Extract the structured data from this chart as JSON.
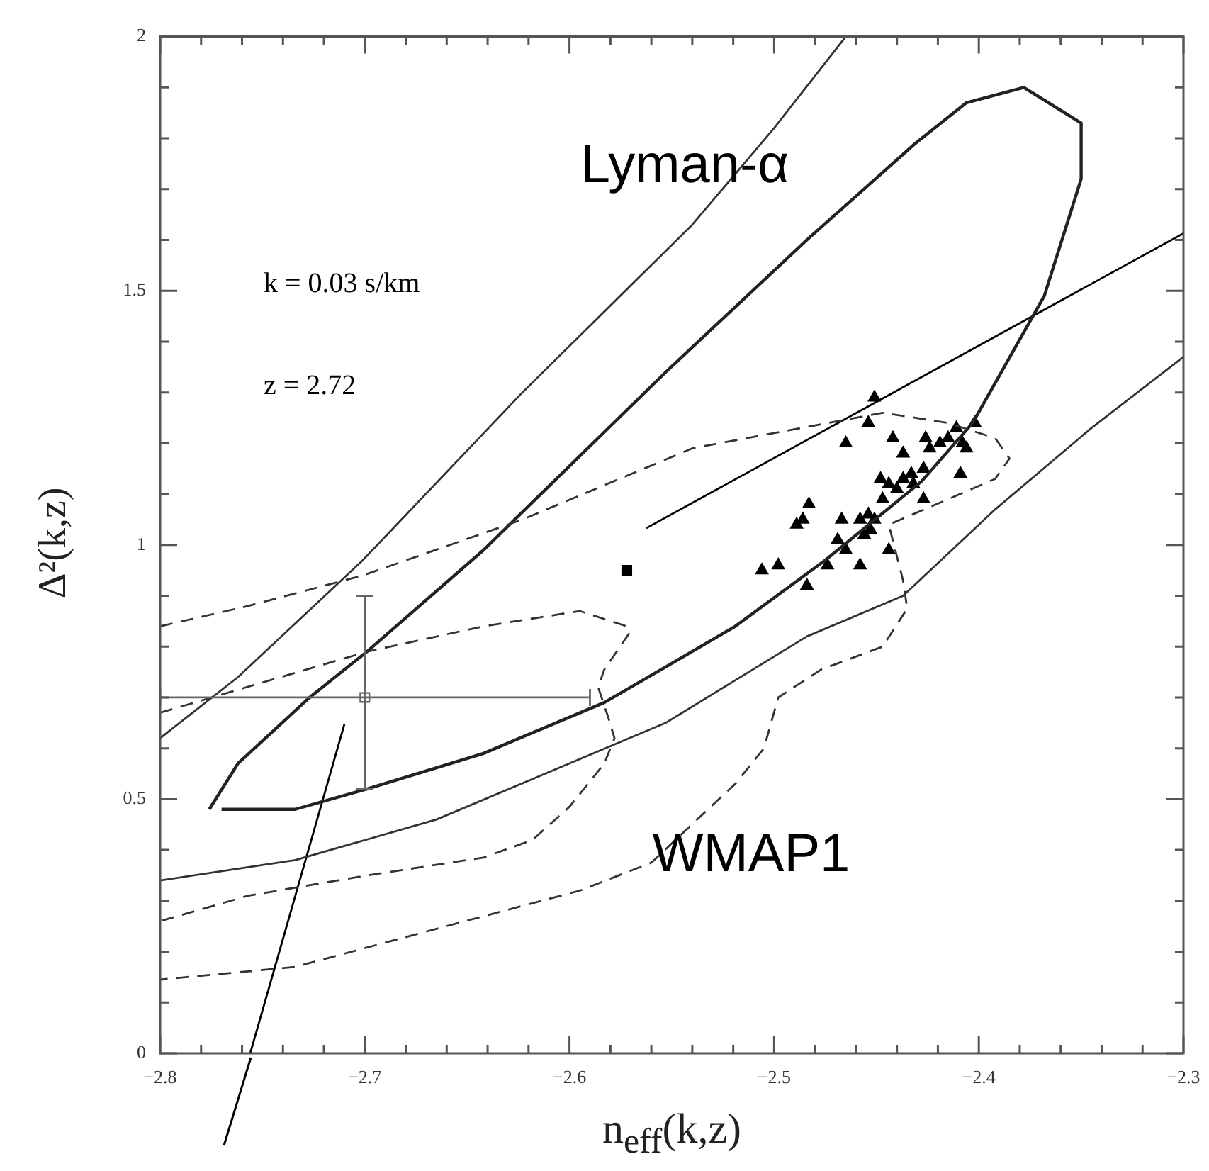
{
  "chart_data": {
    "type": "line",
    "xlabel": "n$_{eff}$(k,z)",
    "ylabel": "Δ²(k,z)",
    "xlim": [
      -2.8,
      -2.3
    ],
    "ylim": [
      0,
      2
    ],
    "xticks": [
      -2.8,
      {
        "value": -2.78,
        "label": null
      },
      {
        "value": -2.76,
        "label": null
      },
      {
        "value": -2.74,
        "label": null
      },
      {
        "value": -2.72,
        "label": null
      },
      -2.7,
      {
        "value": -2.68,
        "label": null
      },
      {
        "value": -2.66,
        "label": null
      },
      {
        "value": -2.64,
        "label": null
      },
      {
        "value": -2.62,
        "label": null
      },
      -2.6,
      {
        "value": -2.58,
        "label": null
      },
      {
        "value": -2.56,
        "label": null
      },
      {
        "value": -2.54,
        "label": null
      },
      {
        "value": -2.52,
        "label": null
      },
      -2.5,
      {
        "value": -2.48,
        "label": null
      },
      {
        "value": -2.46,
        "label": null
      },
      {
        "value": -2.44,
        "label": null
      },
      {
        "value": -2.42,
        "label": null
      },
      -2.4,
      {
        "value": -2.38,
        "label": null
      },
      {
        "value": -2.36,
        "label": null
      },
      {
        "value": -2.34,
        "label": null
      },
      {
        "value": -2.32,
        "label": null
      },
      -2.3
    ],
    "yticks": [
      0,
      {
        "value": 0.1,
        "label": null
      },
      {
        "value": 0.2,
        "label": null
      },
      {
        "value": 0.3,
        "label": null
      },
      {
        "value": 0.4,
        "label": null
      },
      0.5,
      {
        "value": 0.6,
        "label": null
      },
      {
        "value": 0.7,
        "label": null
      },
      {
        "value": 0.8,
        "label": null
      },
      {
        "value": 0.9,
        "label": null
      },
      1,
      {
        "value": 1.1,
        "label": null
      },
      {
        "value": 1.2,
        "label": null
      },
      {
        "value": 1.3,
        "label": null
      },
      {
        "value": 1.4,
        "label": null
      },
      1.5,
      {
        "value": 1.6,
        "label": null
      },
      {
        "value": 1.7,
        "label": null
      },
      {
        "value": 1.8,
        "label": null
      },
      {
        "value": 1.9,
        "label": null
      },
      2
    ],
    "grid": false,
    "legend": false,
    "annotations": [
      "k = 0.03 s/km",
      "z = 2.72",
      "Lyman-α",
      "WMAP1"
    ],
    "series": [
      {
        "type": "line",
        "color": "#333333",
        "line_style": "dashed",
        "marker": "none",
        "x": [
          -2.8,
          -2.757,
          -2.701,
          -2.623,
          -2.54,
          -2.447,
          -2.415,
          -2.392,
          -2.385,
          -2.392,
          -2.415,
          -2.444,
          -2.437,
          -2.435,
          -2.447,
          -2.477,
          -2.498,
          -2.505,
          -2.519,
          -2.535,
          -2.56,
          -2.595,
          -2.665,
          -2.734,
          -2.8
        ],
        "values": [
          0.84,
          0.88,
          0.94,
          1.05,
          1.19,
          1.26,
          1.24,
          1.21,
          1.17,
          1.13,
          1.09,
          1.04,
          0.93,
          0.875,
          0.8,
          0.755,
          0.7,
          0.6,
          0.53,
          0.47,
          0.375,
          0.32,
          0.245,
          0.17,
          0.145
        ]
      },
      {
        "type": "line",
        "color": "#333333",
        "line_style": "dashed",
        "marker": "none",
        "x": [
          -2.8,
          -2.699,
          -2.642,
          -2.595,
          -2.572,
          -2.571,
          -2.583,
          -2.586,
          -2.581,
          -2.578,
          -2.583,
          -2.6,
          -2.618,
          -2.642,
          -2.699,
          -2.757,
          -2.8
        ],
        "values": [
          0.67,
          0.79,
          0.84,
          0.87,
          0.84,
          0.825,
          0.755,
          0.72,
          0.66,
          0.62,
          0.57,
          0.485,
          0.42,
          0.385,
          0.35,
          0.31,
          0.26
        ]
      },
      {
        "type": "line",
        "color": "#333333",
        "line_style": "solid",
        "marker": "none",
        "x": [
          -2.8,
          -2.762,
          -2.701,
          -2.623,
          -2.54,
          -2.5,
          -2.465
        ],
        "values": [
          0.62,
          0.74,
          0.97,
          1.3,
          1.63,
          1.82,
          2.0
        ]
      },
      {
        "type": "line",
        "color": "#333333",
        "line_style": "solid",
        "marker": "none",
        "x": [
          -2.3,
          -2.345,
          -2.392,
          -2.437,
          -2.484,
          -2.553,
          -2.665,
          -2.734,
          -2.8
        ],
        "values": [
          1.37,
          1.23,
          1.07,
          0.9,
          0.82,
          0.65,
          0.46,
          0.38,
          0.34
        ]
      },
      {
        "type": "line",
        "color": "#222222",
        "line_style": "solid",
        "marker": "none",
        "x": [
          -2.776,
          -2.762,
          -2.727,
          -2.699,
          -2.642,
          -2.553,
          -2.484,
          -2.431,
          -2.406,
          -2.378,
          -2.35,
          -2.35,
          -2.368,
          -2.403,
          -2.428,
          -2.475,
          -2.519,
          -2.553,
          -2.583,
          -2.642,
          -2.699,
          -2.734,
          -2.77
        ],
        "values": [
          0.48,
          0.57,
          0.7,
          0.79,
          0.99,
          1.34,
          1.6,
          1.79,
          1.87,
          1.9,
          1.83,
          1.72,
          1.49,
          1.24,
          1.125,
          0.97,
          0.84,
          0.76,
          0.69,
          0.59,
          0.52,
          0.48,
          0.48
        ]
      },
      {
        "type": "scatter",
        "color": "#000000",
        "marker": "triangle",
        "x": [
          -2.451,
          -2.454,
          -2.465,
          -2.442,
          -2.437,
          -2.426,
          -2.424,
          -2.419,
          -2.415,
          -2.411,
          -2.402,
          -2.408,
          -2.406,
          -2.409,
          -2.427,
          -2.433,
          -2.437,
          -2.448,
          -2.444,
          -2.44,
          -2.432,
          -2.427,
          -2.447,
          -2.454,
          -2.458,
          -2.451,
          -2.467,
          -2.483,
          -2.486,
          -2.489,
          -2.469,
          -2.456,
          -2.444,
          -2.465,
          -2.474,
          -2.458,
          -2.506,
          -2.498,
          -2.484,
          -2.453
        ],
        "values": [
          1.29,
          1.24,
          1.2,
          1.21,
          1.18,
          1.21,
          1.19,
          1.2,
          1.21,
          1.23,
          1.24,
          1.2,
          1.19,
          1.14,
          1.15,
          1.14,
          1.13,
          1.13,
          1.12,
          1.11,
          1.12,
          1.09,
          1.09,
          1.06,
          1.05,
          1.05,
          1.05,
          1.08,
          1.05,
          1.04,
          1.01,
          1.02,
          0.99,
          0.99,
          0.96,
          0.96,
          0.95,
          0.96,
          0.92,
          1.03
        ]
      },
      {
        "type": "scatter",
        "color": "#000000",
        "marker": "square",
        "x": [
          -2.572
        ],
        "values": [
          0.95
        ]
      },
      {
        "type": "line",
        "color": "#000000",
        "line_style": "solid",
        "marker": "none",
        "x": [
          -2.5625,
          -2.3
        ],
        "values": [
          1.033,
          1.613
        ]
      },
      {
        "type": "line",
        "color": "#000000",
        "line_style": "solid",
        "marker": "none",
        "x": [
          -2.71,
          -2.756
        ],
        "values": [
          0.647,
          0
        ]
      },
      {
        "type": "scatter",
        "color": "#666666",
        "marker": "square",
        "x": [
          -2.7
        ],
        "values": [
          0.7
        ],
        "errors": [
          [
            0.52,
            0.9
          ]
        ],
        "xerrors": [
          [
            -2.8,
            -2.59
          ]
        ]
      }
    ]
  }
}
